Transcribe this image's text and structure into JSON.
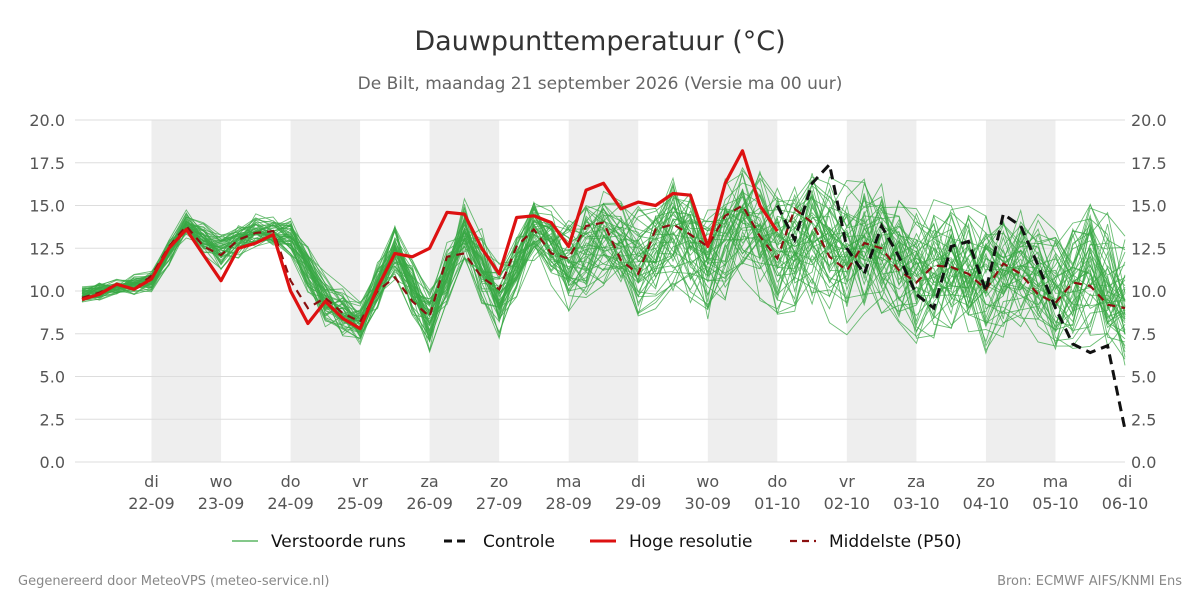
{
  "title": "Dauwpunttemperatuur (°C)",
  "subtitle": "De Bilt, maandag 21 september 2026 (Versie ma 00 uur)",
  "footer_left": "Gegenereerd door MeteoVPS (meteo-service.nl)",
  "footer_right": "Bron: ECMWF AIFS/KNMI Ens",
  "colors": {
    "ensemble": "#3aa845",
    "control": "#111111",
    "hires": "#dd1111",
    "median": "#8b1010",
    "weekend_band": "#eeeeee",
    "grid": "#dddddd"
  },
  "chart_data": {
    "type": "line",
    "x_unit": "days since 2026-09-21 00:00",
    "xlim": [
      -0.1,
      15.0
    ],
    "ylim": [
      0,
      20
    ],
    "y_ticks": [
      0.0,
      2.5,
      5.0,
      7.5,
      10.0,
      12.5,
      15.0,
      17.5,
      20.0
    ],
    "y_tick_labels": [
      "0.0",
      "2.5",
      "5.0",
      "7.5",
      "10.0",
      "12.5",
      "15.0",
      "17.5",
      "20.0"
    ],
    "x_ticks": [
      {
        "x": 1,
        "day": "di",
        "date": "22-09"
      },
      {
        "x": 2,
        "day": "wo",
        "date": "23-09"
      },
      {
        "x": 3,
        "day": "do",
        "date": "24-09"
      },
      {
        "x": 4,
        "day": "vr",
        "date": "25-09"
      },
      {
        "x": 5,
        "day": "za",
        "date": "26-09"
      },
      {
        "x": 6,
        "day": "zo",
        "date": "27-09"
      },
      {
        "x": 7,
        "day": "ma",
        "date": "28-09"
      },
      {
        "x": 8,
        "day": "di",
        "date": "29-09"
      },
      {
        "x": 9,
        "day": "wo",
        "date": "30-09"
      },
      {
        "x": 10,
        "day": "do",
        "date": "01-10"
      },
      {
        "x": 11,
        "day": "vr",
        "date": "02-10"
      },
      {
        "x": 12,
        "day": "za",
        "date": "03-10"
      },
      {
        "x": 13,
        "day": "zo",
        "date": "04-10"
      },
      {
        "x": 14,
        "day": "ma",
        "date": "05-10"
      },
      {
        "x": 15,
        "day": "di",
        "date": "06-10"
      }
    ],
    "shaded_bands": [
      [
        1,
        2
      ],
      [
        3,
        4
      ],
      [
        5,
        6
      ],
      [
        7,
        8
      ],
      [
        9,
        10
      ],
      [
        11,
        12
      ],
      [
        13,
        14
      ]
    ],
    "legend": [
      "Verstoorde runs",
      "Controle",
      "Hoge resolutie",
      "Middelste (P50)"
    ],
    "hires": {
      "name": "Hoge resolutie",
      "x": [
        0,
        0.25,
        0.5,
        0.75,
        1,
        1.25,
        1.5,
        1.75,
        2,
        2.25,
        2.5,
        2.75,
        3,
        3.25,
        3.5,
        3.75,
        4,
        4.25,
        4.5,
        4.75,
        5,
        5.25,
        5.5,
        5.75,
        6,
        6.25,
        6.5,
        6.75,
        7,
        7.25,
        7.5,
        7.75,
        8,
        8.25,
        8.5,
        8.75,
        9,
        9.25,
        9.5,
        9.75,
        10
      ],
      "values": [
        9.5,
        9.8,
        10.4,
        10.1,
        10.7,
        12.5,
        13.6,
        12.1,
        10.6,
        12.5,
        12.8,
        13.3,
        10.0,
        8.1,
        9.4,
        8.4,
        7.8,
        10.2,
        12.2,
        12.0,
        12.5,
        14.6,
        14.5,
        12.5,
        11.0,
        14.3,
        14.4,
        14.0,
        12.6,
        15.9,
        16.3,
        14.8,
        15.2,
        15.0,
        15.7,
        15.6,
        12.6,
        16.3,
        18.2,
        15.0,
        13.5
      ]
    },
    "median": {
      "name": "Middelste (P50)",
      "x": [
        0,
        0.25,
        0.5,
        0.75,
        1,
        1.25,
        1.5,
        1.75,
        2,
        2.25,
        2.5,
        2.75,
        3,
        3.25,
        3.5,
        3.75,
        4,
        4.25,
        4.5,
        4.75,
        5,
        5.25,
        5.5,
        5.75,
        6,
        6.25,
        6.5,
        6.75,
        7,
        7.25,
        7.5,
        7.75,
        8,
        8.25,
        8.5,
        8.75,
        9,
        9.25,
        9.5,
        9.75,
        10,
        10.25,
        10.5,
        10.75,
        11,
        11.25,
        11.5,
        11.75,
        12,
        12.25,
        12.5,
        12.75,
        13,
        13.25,
        13.5,
        13.75,
        14,
        14.25,
        14.5,
        14.75,
        15
      ],
      "values": [
        9.6,
        9.9,
        10.4,
        10.1,
        10.9,
        12.6,
        13.8,
        12.6,
        12.1,
        13.0,
        13.4,
        13.5,
        10.6,
        9.0,
        9.6,
        8.7,
        8.2,
        10.0,
        10.8,
        9.4,
        8.5,
        12.0,
        12.2,
        10.8,
        10.1,
        12.6,
        13.6,
        12.2,
        11.9,
        13.8,
        14.0,
        11.8,
        11.0,
        13.6,
        13.9,
        13.3,
        12.6,
        14.4,
        15.0,
        13.2,
        11.9,
        14.8,
        14.0,
        12.0,
        11.2,
        12.8,
        12.5,
        11.2,
        10.5,
        11.5,
        11.4,
        11.0,
        10.1,
        11.6,
        11.0,
        9.8,
        9.3,
        10.5,
        10.3,
        9.2,
        9.0
      ]
    },
    "control": {
      "name": "Controle",
      "x": [
        10,
        10.25,
        10.5,
        10.75,
        11,
        11.25,
        11.5,
        11.75,
        12,
        12.25,
        12.5,
        12.75,
        13,
        13.25,
        13.5,
        13.75,
        14,
        14.25,
        14.5,
        14.75,
        15
      ],
      "values": [
        15.0,
        13.0,
        16.3,
        17.4,
        12.5,
        11.0,
        13.8,
        12.0,
        9.8,
        9.0,
        12.6,
        12.9,
        10.0,
        14.5,
        13.8,
        11.5,
        9.0,
        6.9,
        6.4,
        6.8,
        1.9
      ]
    },
    "ensemble": {
      "name": "Verstoorde runs",
      "members": 50,
      "x_start": 0,
      "x_step": 0.25,
      "spread_profile": [
        [
          0,
          9.8,
          0.4
        ],
        [
          1,
          10.6,
          0.5
        ],
        [
          1.5,
          13.9,
          0.7
        ],
        [
          2,
          12.3,
          0.9
        ],
        [
          2.5,
          13.5,
          0.8
        ],
        [
          3,
          13.2,
          0.9
        ],
        [
          3.5,
          9.5,
          1.3
        ],
        [
          4,
          8.2,
          1.1
        ],
        [
          4.5,
          12.5,
          1.4
        ],
        [
          5,
          8.3,
          1.6
        ],
        [
          5.5,
          13.5,
          1.6
        ],
        [
          6,
          9.5,
          1.9
        ],
        [
          6.5,
          13.7,
          1.6
        ],
        [
          7,
          11.5,
          2.3
        ],
        [
          7.5,
          13.5,
          2.5
        ],
        [
          8,
          11.6,
          2.8
        ],
        [
          8.5,
          13.4,
          2.8
        ],
        [
          9,
          11.8,
          3.0
        ],
        [
          9.5,
          14.3,
          2.8
        ],
        [
          10,
          12.5,
          3.2
        ],
        [
          10.5,
          13.3,
          3.3
        ],
        [
          11,
          12.0,
          3.5
        ],
        [
          11.5,
          12.7,
          3.5
        ],
        [
          12,
          11.0,
          3.5
        ],
        [
          12.5,
          11.6,
          3.4
        ],
        [
          13,
          10.4,
          3.3
        ],
        [
          13.5,
          11.5,
          3.3
        ],
        [
          14,
          10.0,
          3.2
        ],
        [
          14.5,
          11.0,
          3.4
        ],
        [
          15,
          9.6,
          3.5
        ]
      ]
    }
  }
}
